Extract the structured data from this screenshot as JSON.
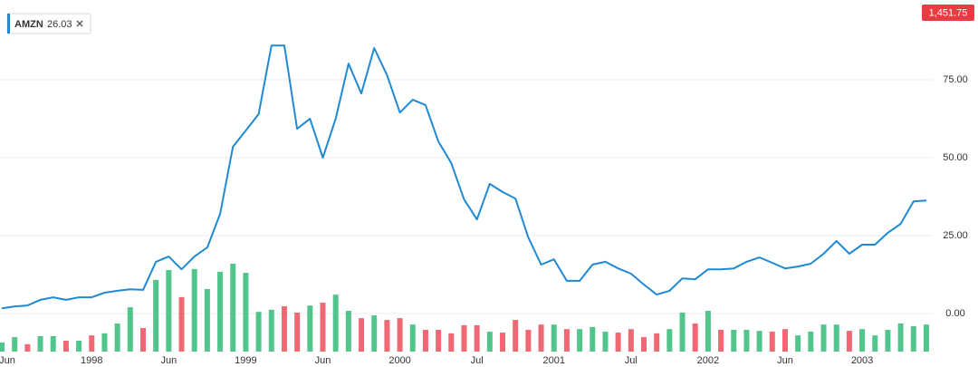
{
  "chart_data": {
    "type": "line",
    "categories": [
      "Jun",
      null,
      null,
      null,
      null,
      null,
      null,
      "1998",
      null,
      null,
      null,
      null,
      null,
      "Jun",
      null,
      null,
      null,
      null,
      null,
      "1999",
      null,
      null,
      null,
      null,
      null,
      "Jun",
      null,
      null,
      null,
      null,
      null,
      "2000",
      null,
      null,
      null,
      null,
      null,
      "Jul",
      null,
      null,
      null,
      null,
      null,
      "2001",
      null,
      null,
      null,
      null,
      null,
      "Jul",
      null,
      null,
      null,
      null,
      null,
      "2002",
      null,
      null,
      null,
      null,
      null,
      "Jun",
      null,
      null,
      null,
      null,
      null,
      "2003",
      null,
      null,
      null,
      null,
      null
    ],
    "series": [
      {
        "name": "AMZN",
        "legend_value": "26.03",
        "color": "#1f8ad3",
        "values": [
          1.7,
          2.3,
          2.6,
          4.4,
          5.2,
          4.4,
          5.2,
          5.2,
          6.7,
          7.3,
          7.8,
          7.6,
          16.6,
          18.3,
          14.2,
          18.3,
          21.2,
          32.0,
          53.5,
          58.7,
          64.0,
          86.0,
          86.0,
          59.3,
          62.5,
          50.0,
          62.5,
          80.2,
          70.6,
          85.2,
          76.5,
          64.5,
          68.6,
          66.9,
          55.2,
          48.3,
          36.6,
          30.2,
          41.6,
          39.0,
          36.9,
          24.4,
          15.7,
          17.4,
          10.5,
          10.5,
          15.7,
          16.6,
          14.5,
          12.8,
          9.3,
          6.1,
          7.3,
          11.3,
          11.0,
          14.2,
          14.2,
          14.5,
          16.6,
          18.0,
          16.3,
          14.5,
          15.1,
          16.0,
          19.2,
          23.3,
          19.2,
          22.1,
          22.1,
          25.9,
          28.8,
          36.0,
          36.3
        ]
      },
      {
        "type": "bar",
        "axis": "y2",
        "values": [
          2.6,
          4.1,
          2.1,
          4.4,
          4.4,
          3.1,
          3.1,
          4.6,
          5.2,
          8.0,
          12.6,
          6.7,
          20.4,
          23.2,
          15.5,
          23.5,
          17.8,
          22.7,
          25.0,
          22.4,
          11.3,
          11.9,
          12.9,
          11.1,
          13.1,
          13.9,
          16.2,
          11.6,
          9.5,
          10.3,
          9.0,
          9.5,
          7.7,
          6.2,
          6.2,
          5.2,
          7.5,
          7.5,
          5.7,
          5.4,
          9.0,
          6.2,
          7.7,
          7.7,
          6.4,
          6.4,
          7.0,
          5.7,
          5.4,
          6.4,
          4.1,
          5.2,
          6.4,
          11.1,
          8.0,
          11.6,
          6.2,
          6.2,
          6.2,
          5.9,
          5.7,
          6.4,
          4.6,
          5.7,
          7.7,
          7.7,
          5.9,
          6.4,
          4.6,
          6.2,
          8.0,
          7.2,
          7.7
        ],
        "colors": [
          "#52c58c",
          "#52c58c",
          "#f06873",
          "#52c58c",
          "#52c58c",
          "#f06873",
          "#52c58c",
          "#f06873",
          "#52c58c",
          "#52c58c",
          "#52c58c",
          "#f06873",
          "#52c58c",
          "#52c58c",
          "#f06873",
          "#52c58c",
          "#52c58c",
          "#52c58c",
          "#52c58c",
          "#52c58c",
          "#52c58c",
          "#52c58c",
          "#f06873",
          "#f06873",
          "#52c58c",
          "#f06873",
          "#52c58c",
          "#52c58c",
          "#f06873",
          "#52c58c",
          "#f06873",
          "#f06873",
          "#52c58c",
          "#f06873",
          "#f06873",
          "#f06873",
          "#f06873",
          "#f06873",
          "#52c58c",
          "#f06873",
          "#f06873",
          "#f06873",
          "#f06873",
          "#52c58c",
          "#f06873",
          "#52c58c",
          "#52c58c",
          "#52c58c",
          "#f06873",
          "#f06873",
          "#f06873",
          "#f06873",
          "#52c58c",
          "#52c58c",
          "#f06873",
          "#52c58c",
          "#f06873",
          "#52c58c",
          "#52c58c",
          "#52c58c",
          "#f06873",
          "#f06873",
          "#52c58c",
          "#52c58c",
          "#52c58c",
          "#52c58c",
          "#f06873",
          "#52c58c",
          "#52c58c",
          "#52c58c",
          "#52c58c",
          "#52c58c",
          "#52c58c"
        ]
      }
    ],
    "ylim": [
      -12.2,
      100.6
    ],
    "yticks": [
      {
        "value": 0,
        "label": "0.00"
      },
      {
        "value": 25,
        "label": "25.00"
      },
      {
        "value": 50,
        "label": "50.00"
      },
      {
        "value": 75,
        "label": "75.00"
      }
    ],
    "y2lim": [
      0,
      100
    ],
    "grid": true,
    "badge": "1,451.75",
    "badge_color": "#ec3a43"
  }
}
